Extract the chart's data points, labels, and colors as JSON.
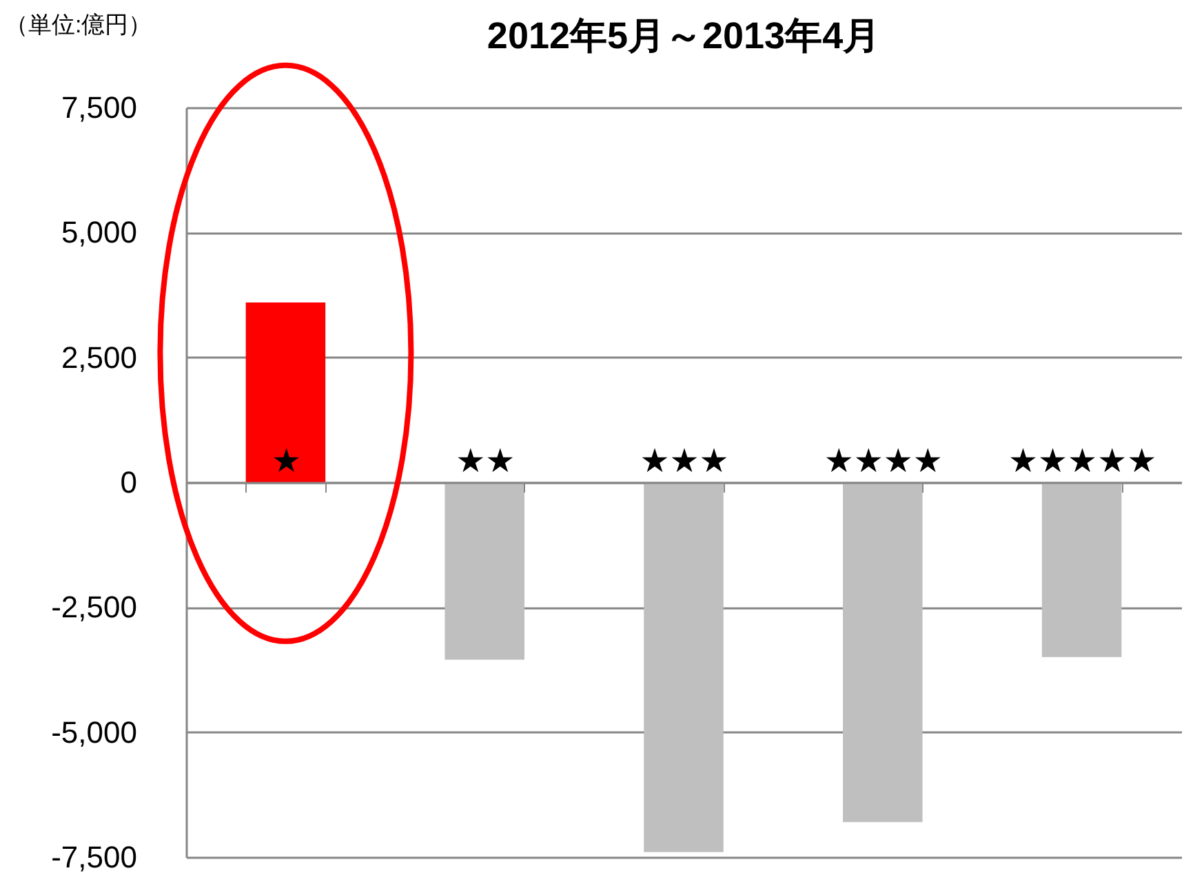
{
  "chart_data": {
    "type": "bar",
    "title": "2012年5月～2013年4月",
    "ylabel": "（単位:億円）",
    "categories": [
      "★",
      "★★",
      "★★★",
      "★★★★",
      "★★★★★"
    ],
    "values": [
      3600,
      -3550,
      -7400,
      -6800,
      -3500
    ],
    "colors": [
      "#ff0000",
      "#bfbfbf",
      "#bfbfbf",
      "#bfbfbf",
      "#bfbfbf"
    ],
    "ylim": [
      -7500,
      7500
    ],
    "yticks": [
      {
        "value": -7500,
        "label": "-7,500"
      },
      {
        "value": -5000,
        "label": "-5,000"
      },
      {
        "value": -2500,
        "label": "-2,500"
      },
      0,
      {
        "value": 2500,
        "label": "2,500"
      },
      {
        "value": 5000,
        "label": "5,000"
      },
      {
        "value": 7500,
        "label": "7,500"
      }
    ],
    "grid": "y"
  }
}
